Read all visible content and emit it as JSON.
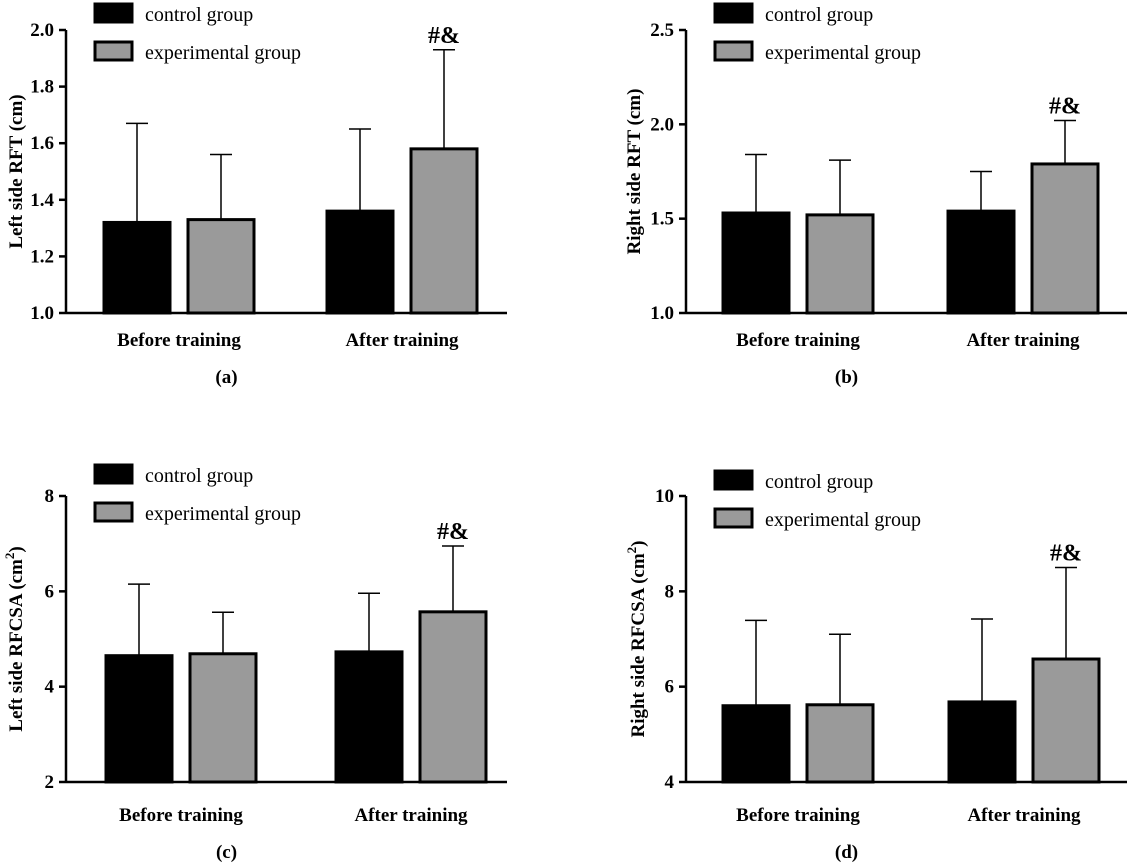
{
  "chart_data": [
    {
      "type": "bar",
      "categories": [
        "Before training",
        "After training"
      ],
      "series": [
        {
          "name": "control group",
          "values": [
            1.32,
            1.36
          ],
          "errors": [
            0.35,
            0.29
          ],
          "color": "#000000"
        },
        {
          "name": "experimental group",
          "values": [
            1.33,
            1.58
          ],
          "errors": [
            0.23,
            0.35
          ],
          "color": "#9a9a9a"
        }
      ],
      "ylabel": "Left side RFT (cm)",
      "ylabel_sup": "",
      "ylim": [
        1.0,
        2.0
      ],
      "yticks": [
        1.0,
        1.2,
        1.4,
        1.6,
        1.8,
        2.0
      ],
      "ytick_labels": [
        "1.0",
        "1.2",
        "1.4",
        "1.6",
        "1.8",
        "2.0"
      ],
      "panel_label": "(a)",
      "annotation": {
        "text": "#&",
        "category": 1,
        "series": 1
      },
      "legend": "top-left"
    },
    {
      "type": "bar",
      "categories": [
        "Before training",
        "After training"
      ],
      "series": [
        {
          "name": "control group",
          "values": [
            1.53,
            1.54
          ],
          "errors": [
            0.31,
            0.21
          ],
          "color": "#000000"
        },
        {
          "name": "experimental group",
          "values": [
            1.52,
            1.79
          ],
          "errors": [
            0.29,
            0.23
          ],
          "color": "#9a9a9a"
        }
      ],
      "ylabel": "Right side RFT (cm)",
      "ylabel_sup": "",
      "ylim": [
        1.0,
        2.5
      ],
      "yticks": [
        1.0,
        1.5,
        2.0,
        2.5
      ],
      "ytick_labels": [
        "1.0",
        "1.5",
        "2.0",
        "2.5"
      ],
      "panel_label": "(b)",
      "annotation": {
        "text": "#&",
        "category": 1,
        "series": 1
      },
      "legend": "top-left"
    },
    {
      "type": "bar",
      "categories": [
        "Before training",
        "After training"
      ],
      "series": [
        {
          "name": "control group",
          "values": [
            4.65,
            4.73
          ],
          "errors": [
            1.5,
            1.23
          ],
          "color": "#000000"
        },
        {
          "name": "experimental group",
          "values": [
            4.69,
            5.57
          ],
          "errors": [
            0.87,
            1.38
          ],
          "color": "#9a9a9a"
        }
      ],
      "ylabel": "Left side RFCSA (cm",
      "ylabel_sup": "2",
      "ylabel_suffix": ")",
      "ylim": [
        2,
        8
      ],
      "yticks": [
        2,
        4,
        6,
        8
      ],
      "ytick_labels": [
        "2",
        "4",
        "6",
        "8"
      ],
      "panel_label": "(c)",
      "annotation": {
        "text": "#&",
        "category": 1,
        "series": 1
      },
      "legend": "top-left"
    },
    {
      "type": "bar",
      "categories": [
        "Before training",
        "After training"
      ],
      "series": [
        {
          "name": "control group",
          "values": [
            5.6,
            5.68
          ],
          "errors": [
            1.79,
            1.74
          ],
          "color": "#000000"
        },
        {
          "name": "experimental group",
          "values": [
            5.62,
            6.58
          ],
          "errors": [
            1.48,
            1.92
          ],
          "color": "#9a9a9a"
        }
      ],
      "ylabel": "Right side RFCSA (cm",
      "ylabel_sup": "2",
      "ylabel_suffix": ")",
      "ylim": [
        4,
        10
      ],
      "yticks": [
        4,
        6,
        8,
        10
      ],
      "ytick_labels": [
        "4",
        "6",
        "8",
        "10"
      ],
      "panel_label": "(d)",
      "annotation": {
        "text": "#&",
        "category": 1,
        "series": 1
      },
      "legend": "top-left"
    }
  ]
}
